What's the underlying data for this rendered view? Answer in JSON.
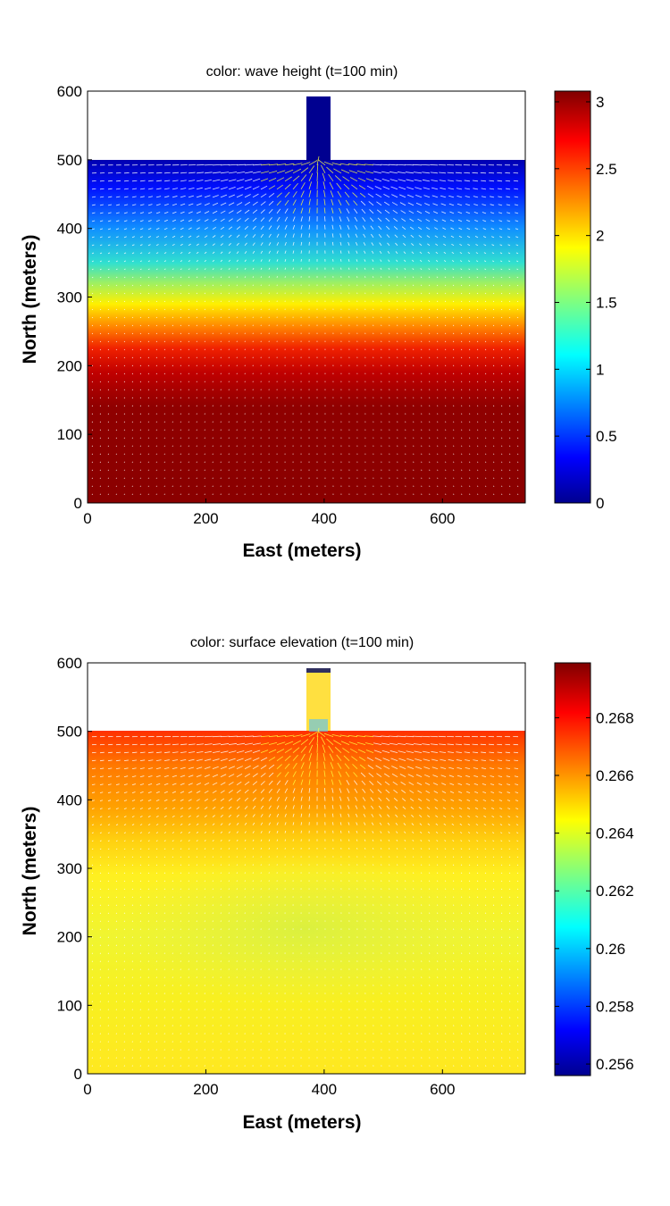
{
  "chart_data": [
    {
      "type": "heatmap",
      "title": "color: wave height   (t=100 min)",
      "xlabel": "East (meters)",
      "ylabel": "North (meters)",
      "xlim": [
        0,
        740
      ],
      "ylim": [
        0,
        600
      ],
      "x_ticks": [
        "0",
        "200",
        "400",
        "600"
      ],
      "y_ticks": [
        "0",
        "100",
        "200",
        "300",
        "400",
        "500",
        "600"
      ],
      "colorbar": {
        "range": [
          0,
          3.08
        ],
        "ticks": [
          "0",
          "0.5",
          "1",
          "1.5",
          "2",
          "2.5",
          "3"
        ],
        "tick_values": [
          0,
          0.5,
          1,
          1.5,
          2,
          2.5,
          3
        ]
      },
      "colormap": "jet",
      "domain": {
        "basin": {
          "x": [
            0,
            740
          ],
          "y": [
            0,
            500
          ]
        },
        "channel": {
          "x": [
            370,
            410
          ],
          "y": [
            500,
            590
          ]
        }
      },
      "field_profile": {
        "description_y": [
          0,
          250,
          300,
          330,
          360,
          400,
          450,
          480,
          500
        ],
        "values": [
          3.05,
          2.9,
          2.6,
          2.15,
          1.8,
          1.25,
          0.5,
          0.2,
          0.05
        ]
      },
      "vectors": "current velocity",
      "grid": false
    },
    {
      "type": "heatmap",
      "title": "color: surface elevation  (t=100 min)",
      "xlabel": "East (meters)",
      "ylabel": "North (meters)",
      "xlim": [
        0,
        740
      ],
      "ylim": [
        0,
        600
      ],
      "x_ticks": [
        "0",
        "200",
        "400",
        "600"
      ],
      "y_ticks": [
        "0",
        "100",
        "200",
        "300",
        "400",
        "500",
        "600"
      ],
      "colorbar": {
        "range": [
          0.2556,
          0.2699
        ],
        "ticks": [
          "0.256",
          "0.258",
          "0.26",
          "0.262",
          "0.264",
          "0.266",
          "0.268"
        ],
        "tick_values": [
          0.256,
          0.258,
          0.26,
          0.262,
          0.264,
          0.266,
          0.268
        ]
      },
      "colormap": "jet",
      "domain": {
        "basin": {
          "x": [
            0,
            740
          ],
          "y": [
            0,
            500
          ]
        },
        "channel": {
          "x": [
            370,
            410
          ],
          "y": [
            500,
            590
          ]
        }
      },
      "field_profile": {
        "description_y": [
          0,
          100,
          200,
          300,
          350,
          400,
          450,
          500
        ],
        "values": [
          0.2645,
          0.2643,
          0.2637,
          0.2643,
          0.2648,
          0.2656,
          0.2664,
          0.2679
        ]
      },
      "vectors": "current velocity",
      "grid": false
    }
  ]
}
